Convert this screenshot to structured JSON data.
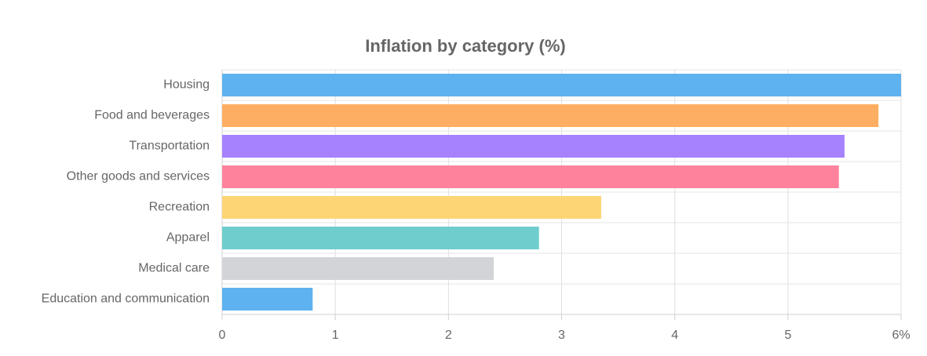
{
  "chart_data": {
    "type": "bar",
    "orientation": "horizontal",
    "title": "Inflation by category (%)",
    "categories": [
      "Housing",
      "Food and beverages",
      "Transportation",
      "Other goods and services",
      "Recreation",
      "Apparel",
      "Medical care",
      "Education and communication"
    ],
    "values": [
      6.0,
      5.8,
      5.5,
      5.45,
      3.35,
      2.8,
      2.4,
      0.8
    ],
    "colors": [
      "#5eb2ef",
      "#feae62",
      "#a682fe",
      "#fe829c",
      "#fed575",
      "#6fcdcd",
      "#d3d4d8",
      "#5eb2ef"
    ],
    "xlim": [
      0,
      6
    ],
    "xticks": [
      0,
      1,
      2,
      3,
      4,
      5,
      {
        "value": 6,
        "label": "6%"
      }
    ],
    "grid": true
  }
}
